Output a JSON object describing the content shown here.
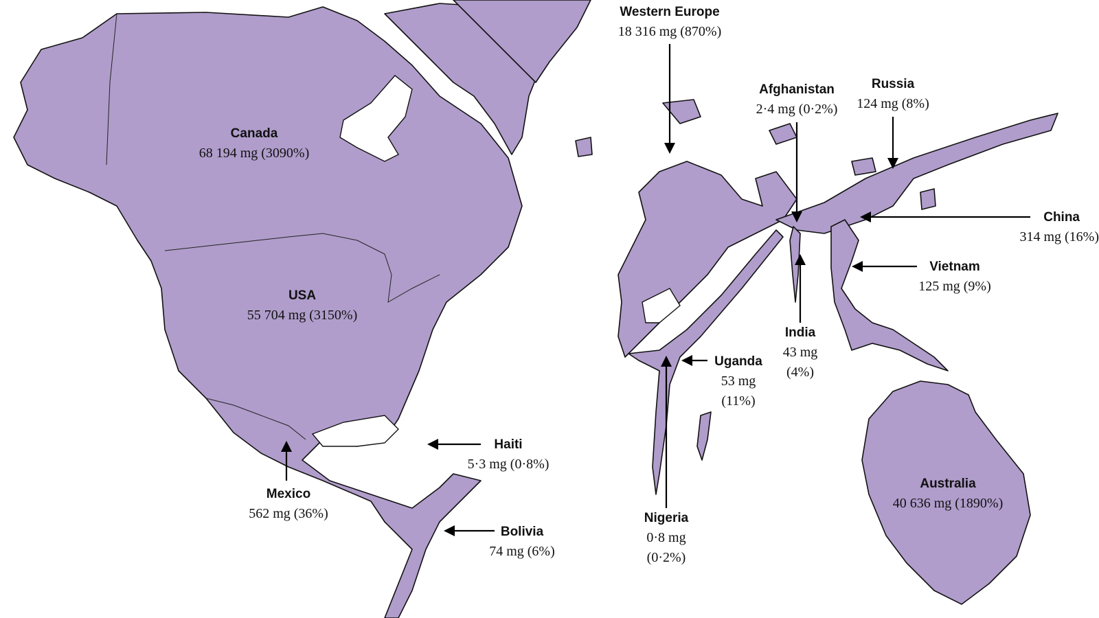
{
  "map": {
    "fill_color": "#b09dcb",
    "stroke_color": "#111111",
    "regions": [
      {
        "id": "canada",
        "name": "Canada",
        "value": "68 194 mg (3090%)"
      },
      {
        "id": "usa",
        "name": "USA",
        "value": "55 704 mg (3150%)"
      },
      {
        "id": "mexico",
        "name": "Mexico",
        "value": "562 mg (36%)"
      },
      {
        "id": "haiti",
        "name": "Haiti",
        "value": "5·3 mg (0·8%)"
      },
      {
        "id": "bolivia",
        "name": "Bolivia",
        "value": "74 mg (6%)"
      },
      {
        "id": "western_europe",
        "name": "Western Europe",
        "value": "18 316 mg (870%)"
      },
      {
        "id": "afghanistan",
        "name": "Afghanistan",
        "value": "2·4 mg (0·2%)"
      },
      {
        "id": "russia",
        "name": "Russia",
        "value": "124 mg (8%)"
      },
      {
        "id": "china",
        "name": "China",
        "value": "314 mg (16%)"
      },
      {
        "id": "vietnam",
        "name": "Vietnam",
        "value": "125 mg (9%)"
      },
      {
        "id": "india",
        "name": "India",
        "value_line1": "43 mg",
        "value_line2": "(4%)"
      },
      {
        "id": "uganda",
        "name": "Uganda",
        "value_line1": "53 mg",
        "value_line2": "(11%)"
      },
      {
        "id": "nigeria",
        "name": "Nigeria",
        "value_line1": "0·8 mg",
        "value_line2": "(0·2%)"
      },
      {
        "id": "australia",
        "name": "Australia",
        "value": "40 636 mg (1890%)"
      }
    ]
  }
}
